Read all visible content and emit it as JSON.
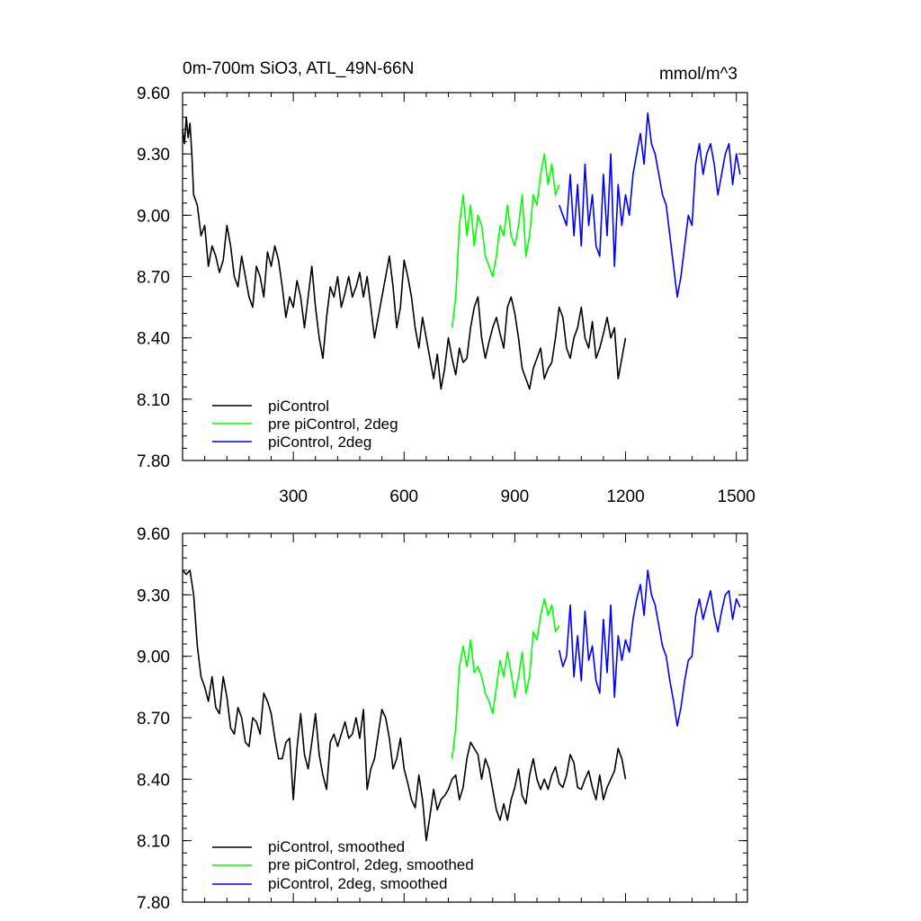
{
  "chart_data": [
    {
      "type": "line",
      "title": "0m-700m SiO3, ATL_49N-66N",
      "units": "mmol/m^3",
      "xlabel": "",
      "ylabel": "",
      "xlim": [
        0,
        1530
      ],
      "ylim": [
        7.8,
        9.6
      ],
      "x_tick_labels": [
        "300",
        "600",
        "900",
        "1200",
        "1500"
      ],
      "x_ticks": [
        300,
        600,
        900,
        1200,
        1500
      ],
      "y_tick_labels": [
        "9.60",
        "9.30",
        "9.00",
        "8.70",
        "8.40",
        "8.10",
        "7.80"
      ],
      "y_ticks": [
        9.6,
        9.3,
        9.0,
        8.7,
        8.4,
        8.1,
        7.8
      ],
      "legend_position": "bottom-left",
      "series": [
        {
          "name": "piControl",
          "color": "#000000",
          "x": [
            0,
            5,
            10,
            15,
            20,
            25,
            30,
            40,
            50,
            60,
            70,
            80,
            90,
            100,
            110,
            120,
            130,
            140,
            150,
            160,
            170,
            180,
            190,
            200,
            210,
            220,
            230,
            240,
            250,
            260,
            270,
            280,
            290,
            300,
            310,
            320,
            330,
            340,
            350,
            360,
            370,
            380,
            390,
            400,
            410,
            420,
            430,
            440,
            450,
            460,
            470,
            480,
            490,
            500,
            510,
            520,
            530,
            540,
            550,
            560,
            570,
            580,
            590,
            600,
            610,
            620,
            630,
            640,
            650,
            660,
            670,
            680,
            690,
            700,
            710,
            720,
            730,
            740,
            750,
            760,
            770,
            780,
            790,
            800,
            810,
            820,
            830,
            840,
            850,
            860,
            870,
            880,
            890,
            900,
            910,
            920,
            930,
            940,
            950,
            960,
            970,
            980,
            990,
            1000,
            1010,
            1020,
            1030,
            1040,
            1050,
            1060,
            1070,
            1080,
            1090,
            1100,
            1110,
            1120,
            1130,
            1140,
            1150,
            1160,
            1170,
            1180,
            1190,
            1200
          ],
          "values": [
            9.42,
            9.35,
            9.48,
            9.38,
            9.45,
            9.3,
            9.1,
            9.05,
            8.9,
            8.95,
            8.75,
            8.85,
            8.8,
            8.72,
            8.78,
            8.95,
            8.85,
            8.7,
            8.65,
            8.8,
            8.7,
            8.6,
            8.55,
            8.75,
            8.7,
            8.6,
            8.82,
            8.75,
            8.85,
            8.78,
            8.65,
            8.5,
            8.6,
            8.55,
            8.68,
            8.6,
            8.45,
            8.6,
            8.75,
            8.55,
            8.4,
            8.3,
            8.5,
            8.65,
            8.6,
            8.7,
            8.55,
            8.62,
            8.7,
            8.6,
            8.65,
            8.72,
            8.6,
            8.7,
            8.55,
            8.4,
            8.5,
            8.6,
            8.7,
            8.8,
            8.65,
            8.45,
            8.55,
            8.78,
            8.7,
            8.6,
            8.45,
            8.35,
            8.5,
            8.4,
            8.3,
            8.2,
            8.32,
            8.15,
            8.25,
            8.4,
            8.3,
            8.22,
            8.35,
            8.28,
            8.3,
            8.45,
            8.55,
            8.6,
            8.4,
            8.3,
            8.38,
            8.45,
            8.5,
            8.42,
            8.35,
            8.55,
            8.6,
            8.52,
            8.4,
            8.25,
            8.2,
            8.15,
            8.25,
            8.3,
            8.35,
            8.2,
            8.25,
            8.28,
            8.4,
            8.55,
            8.5,
            8.35,
            8.3,
            8.4,
            8.45,
            8.55,
            8.4,
            8.35,
            8.48,
            8.3,
            8.35,
            8.42,
            8.5,
            8.4,
            8.45,
            8.2,
            8.3,
            8.4
          ],
          "note": "approximate trace read from plot"
        },
        {
          "name": "pre piControl, 2deg",
          "color": "#00ff00",
          "x": [
            730,
            740,
            750,
            760,
            770,
            780,
            790,
            800,
            810,
            820,
            830,
            840,
            850,
            860,
            870,
            880,
            890,
            900,
            910,
            920,
            930,
            940,
            950,
            960,
            970,
            980,
            990,
            1000,
            1010,
            1020
          ],
          "values": [
            8.45,
            8.6,
            8.95,
            9.1,
            8.9,
            9.05,
            8.85,
            9.0,
            8.95,
            8.8,
            8.75,
            8.7,
            8.8,
            8.95,
            8.9,
            9.05,
            8.9,
            8.85,
            8.95,
            9.1,
            8.8,
            8.9,
            9.1,
            9.05,
            9.2,
            9.3,
            9.15,
            9.25,
            9.1,
            9.15
          ]
        },
        {
          "name": "piControl, 2deg",
          "color": "#0000ff",
          "x": [
            1020,
            1030,
            1040,
            1050,
            1060,
            1070,
            1080,
            1090,
            1100,
            1110,
            1120,
            1130,
            1140,
            1150,
            1160,
            1170,
            1180,
            1190,
            1200,
            1210,
            1220,
            1230,
            1240,
            1250,
            1260,
            1270,
            1280,
            1290,
            1300,
            1310,
            1320,
            1330,
            1340,
            1350,
            1360,
            1370,
            1380,
            1390,
            1400,
            1410,
            1420,
            1430,
            1440,
            1450,
            1460,
            1470,
            1480,
            1490,
            1500,
            1510
          ],
          "values": [
            9.05,
            9.0,
            8.95,
            9.2,
            8.9,
            9.15,
            8.85,
            9.25,
            8.95,
            9.1,
            8.85,
            8.8,
            9.2,
            8.9,
            9.3,
            8.75,
            9.15,
            8.95,
            9.1,
            9.0,
            9.2,
            9.3,
            9.4,
            9.25,
            9.5,
            9.35,
            9.3,
            9.2,
            9.1,
            9.05,
            8.9,
            8.75,
            8.6,
            8.7,
            8.85,
            9.0,
            8.95,
            9.25,
            9.35,
            9.2,
            9.3,
            9.35,
            9.25,
            9.1,
            9.2,
            9.3,
            9.35,
            9.15,
            9.3,
            9.2
          ]
        }
      ]
    },
    {
      "type": "line",
      "title": "",
      "xlabel": "",
      "ylabel": "",
      "xlim": [
        0,
        1530
      ],
      "ylim": [
        7.8,
        9.6
      ],
      "x_ticks": [
        300,
        600,
        900,
        1200,
        1500
      ],
      "y_tick_labels": [
        "9.60",
        "9.30",
        "9.00",
        "8.70",
        "8.40",
        "8.10",
        "7.80"
      ],
      "y_ticks": [
        9.6,
        9.3,
        9.0,
        8.7,
        8.4,
        8.1,
        7.8
      ],
      "legend_position": "bottom-left",
      "series": [
        {
          "name": "piControl, smoothed",
          "color": "#000000",
          "x": [
            0,
            10,
            20,
            30,
            40,
            50,
            60,
            70,
            80,
            90,
            100,
            110,
            120,
            130,
            140,
            150,
            160,
            170,
            180,
            190,
            200,
            210,
            220,
            230,
            240,
            250,
            260,
            270,
            280,
            290,
            300,
            310,
            320,
            330,
            340,
            350,
            360,
            370,
            380,
            390,
            400,
            410,
            420,
            430,
            440,
            450,
            460,
            470,
            480,
            490,
            500,
            510,
            520,
            530,
            540,
            550,
            560,
            570,
            580,
            590,
            600,
            610,
            620,
            630,
            640,
            650,
            660,
            670,
            680,
            690,
            700,
            710,
            720,
            730,
            740,
            750,
            760,
            770,
            780,
            790,
            800,
            810,
            820,
            830,
            840,
            850,
            860,
            870,
            880,
            890,
            900,
            910,
            920,
            930,
            940,
            950,
            960,
            970,
            980,
            990,
            1000,
            1010,
            1020,
            1030,
            1040,
            1050,
            1060,
            1070,
            1080,
            1090,
            1100,
            1110,
            1120,
            1130,
            1140,
            1150,
            1160,
            1170,
            1180,
            1190,
            1200
          ],
          "values": [
            9.42,
            9.4,
            9.42,
            9.3,
            9.05,
            8.9,
            8.85,
            8.78,
            8.9,
            8.75,
            8.72,
            8.9,
            8.8,
            8.65,
            8.62,
            8.75,
            8.7,
            8.58,
            8.56,
            8.7,
            8.68,
            8.62,
            8.82,
            8.78,
            8.72,
            8.6,
            8.5,
            8.5,
            8.58,
            8.6,
            8.3,
            8.55,
            8.72,
            8.52,
            8.45,
            8.58,
            8.72,
            8.52,
            8.42,
            8.35,
            8.58,
            8.62,
            8.56,
            8.62,
            8.68,
            8.6,
            8.62,
            8.7,
            8.6,
            8.74,
            8.35,
            8.45,
            8.5,
            8.62,
            8.74,
            8.7,
            8.6,
            8.45,
            8.5,
            8.6,
            8.45,
            8.38,
            8.3,
            8.26,
            8.42,
            8.3,
            8.1,
            8.22,
            8.35,
            8.25,
            8.3,
            8.32,
            8.35,
            8.4,
            8.42,
            8.3,
            8.36,
            8.5,
            8.58,
            8.55,
            8.52,
            8.4,
            8.5,
            8.45,
            8.35,
            8.25,
            8.2,
            8.28,
            8.2,
            8.3,
            8.36,
            8.45,
            8.32,
            8.28,
            8.42,
            8.5,
            8.4,
            8.35,
            8.4,
            8.35,
            8.42,
            8.46,
            8.38,
            8.36,
            8.42,
            8.52,
            8.48,
            8.36,
            8.35,
            8.4,
            8.44,
            8.36,
            8.3,
            8.42,
            8.3,
            8.36,
            8.4,
            8.44,
            8.55,
            8.5,
            8.4
          ]
        },
        {
          "name": "pre piControl, 2deg, smoothed",
          "color": "#00ff00",
          "x": [
            730,
            740,
            750,
            760,
            770,
            780,
            790,
            800,
            810,
            820,
            830,
            840,
            850,
            860,
            870,
            880,
            890,
            900,
            910,
            920,
            930,
            940,
            950,
            960,
            970,
            980,
            990,
            1000,
            1010,
            1020
          ],
          "values": [
            8.5,
            8.65,
            8.95,
            9.05,
            8.95,
            9.08,
            8.92,
            8.95,
            8.9,
            8.82,
            8.78,
            8.72,
            8.85,
            8.98,
            8.9,
            9.02,
            8.92,
            8.8,
            8.9,
            9.02,
            8.82,
            8.9,
            9.12,
            9.08,
            9.2,
            9.28,
            9.2,
            9.25,
            9.12,
            9.15
          ]
        },
        {
          "name": "piControl, 2deg, smoothed",
          "color": "#0000ff",
          "x": [
            1020,
            1030,
            1040,
            1050,
            1060,
            1070,
            1080,
            1090,
            1100,
            1110,
            1120,
            1130,
            1140,
            1150,
            1160,
            1170,
            1180,
            1190,
            1200,
            1210,
            1220,
            1230,
            1240,
            1250,
            1260,
            1270,
            1280,
            1290,
            1300,
            1310,
            1320,
            1330,
            1340,
            1350,
            1360,
            1370,
            1380,
            1390,
            1400,
            1410,
            1420,
            1430,
            1440,
            1450,
            1460,
            1470,
            1480,
            1490,
            1500,
            1510
          ],
          "values": [
            9.03,
            8.95,
            9.0,
            9.25,
            8.9,
            9.1,
            8.88,
            9.22,
            8.98,
            9.05,
            8.88,
            8.82,
            9.18,
            8.92,
            9.25,
            8.8,
            9.1,
            8.98,
            9.08,
            9.02,
            9.18,
            9.28,
            9.35,
            9.2,
            9.42,
            9.3,
            9.25,
            9.15,
            9.05,
            9.0,
            8.88,
            8.78,
            8.66,
            8.75,
            8.88,
            8.98,
            9.0,
            9.2,
            9.28,
            9.18,
            9.25,
            9.32,
            9.2,
            9.12,
            9.22,
            9.3,
            9.32,
            9.18,
            9.28,
            9.24
          ]
        }
      ]
    }
  ]
}
